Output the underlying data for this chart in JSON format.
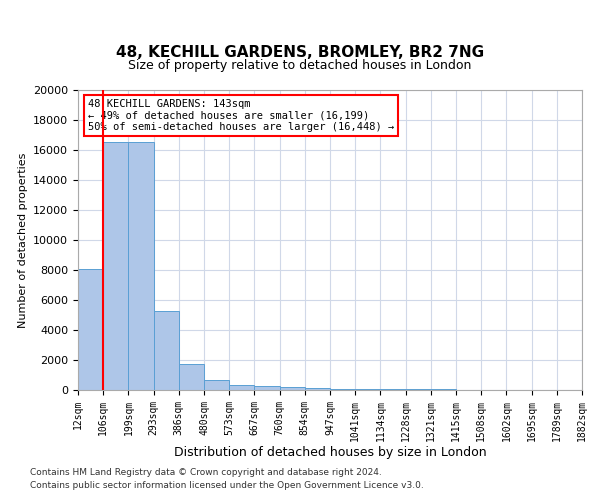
{
  "title1": "48, KECHILL GARDENS, BROMLEY, BR2 7NG",
  "title2": "Size of property relative to detached houses in London",
  "xlabel": "Distribution of detached houses by size in London",
  "ylabel": "Number of detached properties",
  "annotation_line1": "48 KECHILL GARDENS: 143sqm",
  "annotation_line2": "← 49% of detached houses are smaller (16,199)",
  "annotation_line3": "50% of semi-detached houses are larger (16,448) →",
  "bar_values": [
    8050,
    16500,
    16500,
    5300,
    1750,
    700,
    350,
    250,
    200,
    150,
    100,
    80,
    60,
    50,
    40,
    30,
    20,
    15,
    10,
    8
  ],
  "bin_labels": [
    "12sqm",
    "106sqm",
    "199sqm",
    "293sqm",
    "386sqm",
    "480sqm",
    "573sqm",
    "667sqm",
    "760sqm",
    "854sqm",
    "947sqm",
    "1041sqm",
    "1134sqm",
    "1228sqm",
    "1321sqm",
    "1415sqm",
    "1508sqm",
    "1602sqm",
    "1695sqm",
    "1789sqm",
    "1882sqm"
  ],
  "bar_color": "#aec6e8",
  "bar_edge_color": "#5a9fd4",
  "red_line_x": 1,
  "ylim": [
    0,
    20000
  ],
  "yticks": [
    0,
    2000,
    4000,
    6000,
    8000,
    10000,
    12000,
    14000,
    16000,
    18000,
    20000
  ],
  "footer1": "Contains HM Land Registry data © Crown copyright and database right 2024.",
  "footer2": "Contains public sector information licensed under the Open Government Licence v3.0.",
  "bg_color": "#ffffff",
  "grid_color": "#d0d8e8"
}
